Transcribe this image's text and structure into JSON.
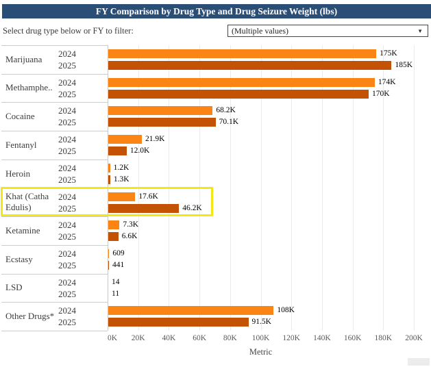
{
  "header": {
    "title": "FY Comparison by Drug Type and Drug Seizure Weight (lbs)"
  },
  "filter": {
    "label": "Select drug type below or FY to filter:",
    "value": "(Multiple values)",
    "caret_icon_glyph": "▼"
  },
  "chart_data": {
    "type": "bar",
    "orientation": "horizontal",
    "title": "FY Comparison by Drug Type and Drug Seizure Weight (lbs)",
    "xlabel": "Metric",
    "ylabel": "",
    "xlim": [
      0,
      200000
    ],
    "grid": "vertical",
    "x_ticks": [
      "0K",
      "20K",
      "40K",
      "60K",
      "80K",
      "100K",
      "120K",
      "140K",
      "160K",
      "180K",
      "200K"
    ],
    "categories": [
      "Marijuana",
      "Methamphe..",
      "Cocaine",
      "Fentanyl",
      "Heroin",
      "Khat (Catha Edulis)",
      "Ketamine",
      "Ecstasy",
      "LSD",
      "Other Drugs*"
    ],
    "series": [
      {
        "name": "2024",
        "color": "#fa8414",
        "values": [
          175000,
          174000,
          68200,
          21900,
          1200,
          17600,
          7300,
          609,
          14,
          108000
        ],
        "labels": [
          "175K",
          "174K",
          "68.2K",
          "21.9K",
          "1.2K",
          "17.6K",
          "7.3K",
          "609",
          "14",
          "108K"
        ]
      },
      {
        "name": "2025",
        "color": "#c45204",
        "values": [
          185000,
          170000,
          70100,
          12000,
          1300,
          46200,
          6600,
          441,
          11,
          91500
        ],
        "labels": [
          "185K",
          "170K",
          "70.1K",
          "12.0K",
          "1.3K",
          "46.2K",
          "6.6K",
          "441",
          "11",
          "91.5K"
        ]
      }
    ],
    "highlighted_category": "Khat (Catha Edulis)",
    "highlight_color": "#f3e812",
    "legend": "none"
  }
}
